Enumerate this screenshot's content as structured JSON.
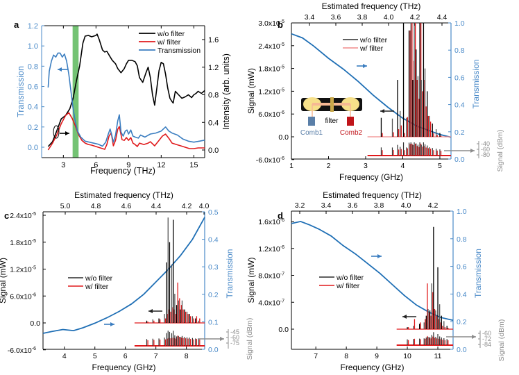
{
  "colors": {
    "black": "#000000",
    "red": "#e0191b",
    "blue": "#3a7dc0",
    "blue_axis": "#4a8ac8",
    "blue_curve": "#1f6fb5",
    "green_band": "#5cb85c",
    "gray": "#8c8c8c",
    "dark_gray": "#555555",
    "light_red": "#f08a8a",
    "comb1": "#5a7fa8",
    "comb2": "#c0141a",
    "lens": "#f6e08a",
    "beam": "#f6b894",
    "filter": "#c9a84a"
  },
  "chart_data": [
    {
      "panel": "a",
      "type": "line",
      "xlabel": "Frequency (THz)",
      "ylabel": "Transmission",
      "y2label": "Intensity (arb. units)",
      "xlim": [
        1.0,
        16.0
      ],
      "ylim": [
        -0.1,
        1.2
      ],
      "y2lim": [
        -0.08,
        1.77
      ],
      "xticks": [
        3,
        6,
        9,
        12,
        15
      ],
      "yticks": [
        0.0,
        0.2,
        0.4,
        0.6,
        0.8,
        1.0,
        1.2
      ],
      "ytick_labels": [
        "0.0",
        "0.2",
        "0.4",
        "0.6",
        "0.8",
        "1.0",
        "1.2"
      ],
      "y2ticks": [
        0.0,
        0.4,
        0.8,
        1.2,
        1.6
      ],
      "y2tick_labels": [
        "0.0",
        "0.4",
        "0.8",
        "1.2",
        "1.6"
      ],
      "highlight_band": [
        3.85,
        4.4
      ],
      "legend": [
        "w/o filter",
        "w/ filter",
        "Transmission"
      ],
      "legend_position": "top-right",
      "series": [
        {
          "name": "w/o filter",
          "axis": "right",
          "color": "black",
          "x": [
            1.6,
            2.0,
            2.4,
            2.8,
            3.2,
            3.6,
            3.9,
            4.2,
            4.5,
            4.8,
            5.0,
            5.3,
            5.6,
            6.0,
            6.1,
            6.3,
            6.6,
            6.8,
            7.0,
            7.3,
            7.5,
            7.8,
            8.0,
            8.3,
            8.6,
            8.8,
            9.0,
            9.3,
            9.6,
            9.8,
            10.0,
            10.3,
            10.6,
            10.8,
            11.0,
            11.2,
            11.4,
            11.6,
            11.8,
            12.0,
            12.2,
            12.4,
            12.6,
            12.8,
            13.0,
            13.1,
            13.3,
            13.6,
            13.9,
            14.2,
            14.5,
            14.8,
            15.0,
            15.2,
            15.4,
            15.7,
            16.0
          ],
          "y": [
            0.05,
            0.12,
            0.28,
            0.45,
            0.5,
            0.6,
            0.75,
            1.0,
            1.22,
            1.55,
            1.65,
            1.66,
            1.64,
            1.66,
            1.68,
            1.6,
            1.45,
            1.42,
            1.43,
            1.35,
            1.3,
            1.25,
            1.18,
            1.12,
            1.18,
            1.25,
            1.3,
            1.3,
            1.28,
            1.22,
            1.05,
            0.98,
            1.12,
            1.2,
            1.05,
            0.8,
            0.65,
            0.9,
            1.15,
            1.27,
            1.25,
            1.1,
            0.9,
            0.75,
            0.7,
            0.68,
            0.85,
            0.8,
            0.75,
            0.77,
            0.8,
            0.76,
            0.8,
            0.82,
            0.85,
            0.82,
            0.86
          ]
        },
        {
          "name": "w/ filter",
          "axis": "right",
          "color": "red",
          "x": [
            1.6,
            2.0,
            2.4,
            2.8,
            3.2,
            3.5,
            3.8,
            4.1,
            4.4,
            4.7,
            5.0,
            5.3,
            5.6,
            6.0,
            6.4,
            6.8,
            7.0,
            7.2,
            7.4,
            7.6,
            7.8,
            8.0,
            8.15,
            8.4,
            8.6,
            8.8,
            9.0,
            9.2,
            9.4,
            9.6,
            9.8,
            10.0,
            10.4,
            10.8,
            11.0,
            11.4,
            11.8,
            12.1,
            12.4,
            12.7,
            13.0,
            13.4,
            13.8,
            14.2,
            14.6,
            15.0,
            15.4,
            15.7,
            16.0
          ],
          "y": [
            0.0,
            0.1,
            0.22,
            0.38,
            0.5,
            0.54,
            0.46,
            0.35,
            0.22,
            0.14,
            0.1,
            0.08,
            0.07,
            0.05,
            0.03,
            0.01,
            0.08,
            0.2,
            0.25,
            0.06,
            0.14,
            0.3,
            0.34,
            0.15,
            0.14,
            0.18,
            0.14,
            0.18,
            0.1,
            0.08,
            0.05,
            0.1,
            0.08,
            0.1,
            0.12,
            0.06,
            0.14,
            0.2,
            0.23,
            0.17,
            0.1,
            0.08,
            0.06,
            0.04,
            0.02,
            0.02,
            0.03,
            0.03,
            0.03
          ]
        },
        {
          "name": "Transmission",
          "axis": "left",
          "color": "blue",
          "x": [
            1.6,
            1.7,
            1.9,
            2.1,
            2.3,
            2.5,
            2.7,
            2.9,
            3.1,
            3.3,
            3.5,
            3.7,
            3.9,
            4.1,
            4.3,
            4.6,
            5.0,
            5.4,
            5.8,
            6.2,
            6.6,
            6.9,
            7.1,
            7.3,
            7.45,
            7.6,
            7.8,
            8.0,
            8.15,
            8.3,
            8.5,
            8.7,
            8.85,
            9.0,
            9.2,
            9.4,
            9.6,
            9.9,
            10.1,
            10.5,
            11.0,
            11.5,
            12.0,
            12.4,
            12.7,
            13.0,
            13.5,
            14.0,
            14.5,
            15.0,
            15.5,
            16.0
          ],
          "y": [
            0.59,
            0.75,
            0.85,
            0.91,
            0.89,
            0.93,
            0.93,
            0.89,
            0.92,
            0.85,
            0.72,
            0.55,
            0.38,
            0.25,
            0.16,
            0.1,
            0.06,
            0.05,
            0.04,
            0.03,
            0.01,
            0.05,
            0.12,
            0.18,
            0.12,
            0.05,
            0.12,
            0.26,
            0.32,
            0.15,
            0.11,
            0.16,
            0.17,
            0.13,
            0.17,
            0.11,
            0.1,
            0.09,
            0.12,
            0.1,
            0.13,
            0.14,
            0.16,
            0.2,
            0.16,
            0.14,
            0.12,
            0.08,
            0.06,
            0.05,
            0.06,
            0.07
          ]
        }
      ],
      "annotations": [
        "left arrow to Transmission axis",
        "ellipse with right arrow to Intensity axis"
      ]
    },
    {
      "panel": "b",
      "type": "line",
      "xlabel": "Frequency (GHz)",
      "top_xlabel": "Estimated frequency (THz)",
      "ylabel": "Signal (mW)",
      "y2label": "Transmission",
      "y3label": "Signal (dBm)",
      "xlim": [
        1.0,
        5.3
      ],
      "ylim": [
        -6e-06,
        3e-05
      ],
      "y2lim": [
        0.0,
        1.0
      ],
      "xticks": [
        1,
        2,
        3,
        4,
        5
      ],
      "top_xticks": [
        "3.4",
        "3.6",
        "3.8",
        "4.0",
        "4.2",
        "4.4"
      ],
      "yticks": [
        -6e-06,
        0.0,
        6e-06,
        1.2e-05,
        1.8e-05,
        2.4e-05,
        3e-05
      ],
      "ytick_labels": [
        "-6.0x10",
        "0.0",
        "6.0x10",
        "1.2x10",
        "1.8x10",
        "2.4x10",
        "3.0x10"
      ],
      "ytick_exps": [
        "-6",
        "",
        "-6",
        "-5",
        "-5",
        "-5",
        "-5"
      ],
      "y2ticks": [
        0.0,
        0.2,
        0.4,
        0.6,
        0.8,
        1.0
      ],
      "y2tick_labels": [
        "0.0",
        "0.2",
        "0.4",
        "0.6",
        "0.8",
        "1.0"
      ],
      "dbm_ticks": [
        "-40",
        "-60",
        "-80"
      ],
      "legend": [
        "w/o filter",
        "w/ filter"
      ],
      "legend_position": "top-center",
      "transmission": {
        "x": [
          1.0,
          1.3,
          1.6,
          2.0,
          2.4,
          2.8,
          3.2,
          3.6,
          4.0,
          4.4,
          4.8,
          5.0,
          5.3
        ],
        "y": [
          0.92,
          0.89,
          0.83,
          0.74,
          0.66,
          0.57,
          0.47,
          0.38,
          0.3,
          0.24,
          0.2,
          0.18,
          0.16
        ]
      },
      "spectrum_range_ghz": [
        3.05,
        5.3
      ],
      "peaks_ghz": [
        3.42,
        3.72,
        3.86,
        3.93,
        4.02,
        4.1,
        4.17,
        4.22,
        4.27,
        4.31,
        4.36,
        4.41,
        4.46,
        4.5,
        4.56,
        4.6,
        4.66,
        4.72,
        4.8,
        4.9,
        5.0
      ],
      "peaks_wo_filter_mW": [
        5e-06,
        4.8e-06,
        1.5e-05,
        6.8e-06,
        3e-05,
        5e-06,
        2.8e-05,
        3e-05,
        1.5e-05,
        3e-05,
        2.3e-05,
        1.6e-05,
        3e-05,
        1.5e-05,
        3e-05,
        1.8e-05,
        1.2e-05,
        5.5e-06,
        3.5e-06,
        2e-06,
        1e-06
      ],
      "peaks_w_filter_mW": [
        1e-06,
        1.2e-06,
        2e-06,
        3e-06,
        1e-06,
        5.2e-06,
        2.8e-05,
        3e-05,
        2e-05,
        3e-05,
        1.5e-05,
        1e-05,
        3e-05,
        1.2e-05,
        1.5e-05,
        8e-06,
        5.5e-06,
        4e-06,
        1e-06,
        5e-07,
        3e-07
      ],
      "inset": {
        "labels": [
          "filter",
          "Comb1",
          "Comb2"
        ]
      }
    },
    {
      "panel": "c",
      "type": "line",
      "xlabel": "Frequency (GHz)",
      "top_xlabel": "Estimated frequency (THz)",
      "ylabel": "Signal (mW)",
      "y2label": "Transmission",
      "y3label": "Signal (dBm)",
      "xlim": [
        3.3,
        8.6
      ],
      "ylim": [
        -6e-06,
        2.4e-05
      ],
      "y2lim": [
        0.0,
        0.5
      ],
      "xticks": [
        4,
        5,
        6,
        7,
        8
      ],
      "top_xticks": [
        "5.0",
        "4.8",
        "4.6",
        "4.4",
        "4.2",
        "4.0"
      ],
      "yticks": [
        -6e-06,
        0.0,
        6e-06,
        1.2e-05,
        1.8e-05,
        2.4e-05
      ],
      "ytick_labels": [
        "-6.0x10",
        "0.0",
        "6.0x10",
        "1.2x10",
        "1.8x10",
        "2.4x10"
      ],
      "ytick_exps": [
        "-6",
        "",
        "-6",
        "-5",
        "-5",
        "-5"
      ],
      "y2ticks": [
        0.0,
        0.1,
        0.2,
        0.3,
        0.4,
        0.5
      ],
      "y2tick_labels": [
        "0.0",
        "0.1",
        "0.2",
        "0.3",
        "0.4",
        "0.5"
      ],
      "dbm_ticks": [
        "-45",
        "-60",
        "-75"
      ],
      "legend": [
        "w/o filter",
        "w/ filter"
      ],
      "legend_position": "center-left",
      "transmission": {
        "x": [
          3.3,
          3.6,
          3.95,
          4.3,
          4.6,
          5.0,
          5.4,
          5.8,
          6.2,
          6.6,
          7.0,
          7.4,
          7.8,
          8.2,
          8.6
        ],
        "y": [
          0.058,
          0.065,
          0.072,
          0.068,
          0.078,
          0.095,
          0.115,
          0.138,
          0.165,
          0.2,
          0.245,
          0.29,
          0.34,
          0.4,
          0.48
        ]
      },
      "spectrum_range_ghz": [
        6.3,
        8.6
      ],
      "peaks_ghz": [
        6.7,
        6.9,
        7.1,
        7.28,
        7.35,
        7.4,
        7.45,
        7.52,
        7.57,
        7.62,
        7.68,
        7.74,
        7.8,
        7.86,
        7.94,
        8.02,
        8.1,
        8.2,
        8.3,
        8.4
      ],
      "peaks_wo_filter_mW": [
        5e-07,
        8e-07,
        1e-06,
        2e-06,
        1.35e-05,
        2.35e-05,
        1.8e-05,
        1.3e-05,
        2.3e-05,
        6.5e-06,
        4e-06,
        5e-06,
        3e-06,
        5e-06,
        3e-06,
        2.5e-06,
        2e-06,
        1.5e-06,
        1e-06,
        5e-07
      ],
      "peaks_w_filter_mW": [
        3e-07,
        5e-07,
        8e-07,
        1e-06,
        2e-06,
        3e-06,
        2.5e-06,
        3.5e-06,
        3e-06,
        2e-06,
        9e-06,
        5.5e-06,
        4e-06,
        3e-06,
        2.5e-06,
        2e-06,
        1.5e-06,
        1e-06,
        1.5e-06,
        1e-06
      ]
    },
    {
      "panel": "d",
      "type": "line",
      "xlabel": "Frequency (GHz)",
      "top_xlabel": "Estimated frequency (THz)",
      "ylabel": "Signal (mW)",
      "y2label": "Transmission",
      "y3label": "Signal (dBm)",
      "xlim": [
        6.2,
        11.5
      ],
      "ylim": [
        -2.8e-07,
        1.8e-06
      ],
      "y2lim": [
        0.0,
        1.0
      ],
      "xticks": [
        7,
        8,
        9,
        10,
        11
      ],
      "top_xticks": [
        "3.2",
        "3.4",
        "3.6",
        "3.8",
        "4.0",
        "4.2"
      ],
      "yticks": [
        0.0,
        4e-07,
        8e-07,
        1.2e-06,
        1.6e-06
      ],
      "ytick_labels": [
        "0.0",
        "4.0x10",
        "8.0x10",
        "1.2x10",
        "1.6x10"
      ],
      "ytick_exps": [
        "",
        "-7",
        "-7",
        "-6",
        "-6"
      ],
      "y2ticks": [
        0.0,
        0.2,
        0.4,
        0.6,
        0.8,
        1.0
      ],
      "y2tick_labels": [
        "0.0",
        "0.2",
        "0.4",
        "0.6",
        "0.8",
        "1.0"
      ],
      "dbm_ticks": [
        "-60",
        "-72",
        "-84"
      ],
      "legend": [
        "w/o filter",
        "w/ filter"
      ],
      "legend_position": "center-left",
      "transmission": {
        "x": [
          6.2,
          6.5,
          6.8,
          7.1,
          7.5,
          7.9,
          8.3,
          8.7,
          9.1,
          9.5,
          9.9,
          10.3,
          10.7,
          11.1,
          11.5
        ],
        "y": [
          0.91,
          0.925,
          0.9,
          0.87,
          0.82,
          0.75,
          0.69,
          0.62,
          0.55,
          0.47,
          0.39,
          0.32,
          0.27,
          0.23,
          0.21
        ]
      },
      "spectrum_range_ghz": [
        9.65,
        11.5
      ],
      "peaks_ghz": [
        10.0,
        10.2,
        10.4,
        10.55,
        10.62,
        10.68,
        10.74,
        10.8,
        10.86,
        10.93,
        11.0,
        11.06,
        11.12,
        11.2,
        11.3
      ],
      "peaks_wo_filter_mW": [
        3e-08,
        5e-08,
        8e-08,
        1e-07,
        2e-07,
        3e-07,
        2.8e-07,
        6.8e-07,
        1.52e-06,
        2.8e-07,
        9.2e-07,
        3.7e-07,
        2e-07,
        1.2e-07,
        5e-08
      ],
      "peaks_w_filter_mW": [
        3e-08,
        1.5e-07,
        1e-07,
        1.5e-07,
        6.8e-07,
        2.5e-07,
        2e-07,
        5.5e-07,
        3e-07,
        2e-07,
        1.5e-07,
        1e-07,
        5e-08,
        3e-08,
        2e-08
      ]
    }
  ]
}
